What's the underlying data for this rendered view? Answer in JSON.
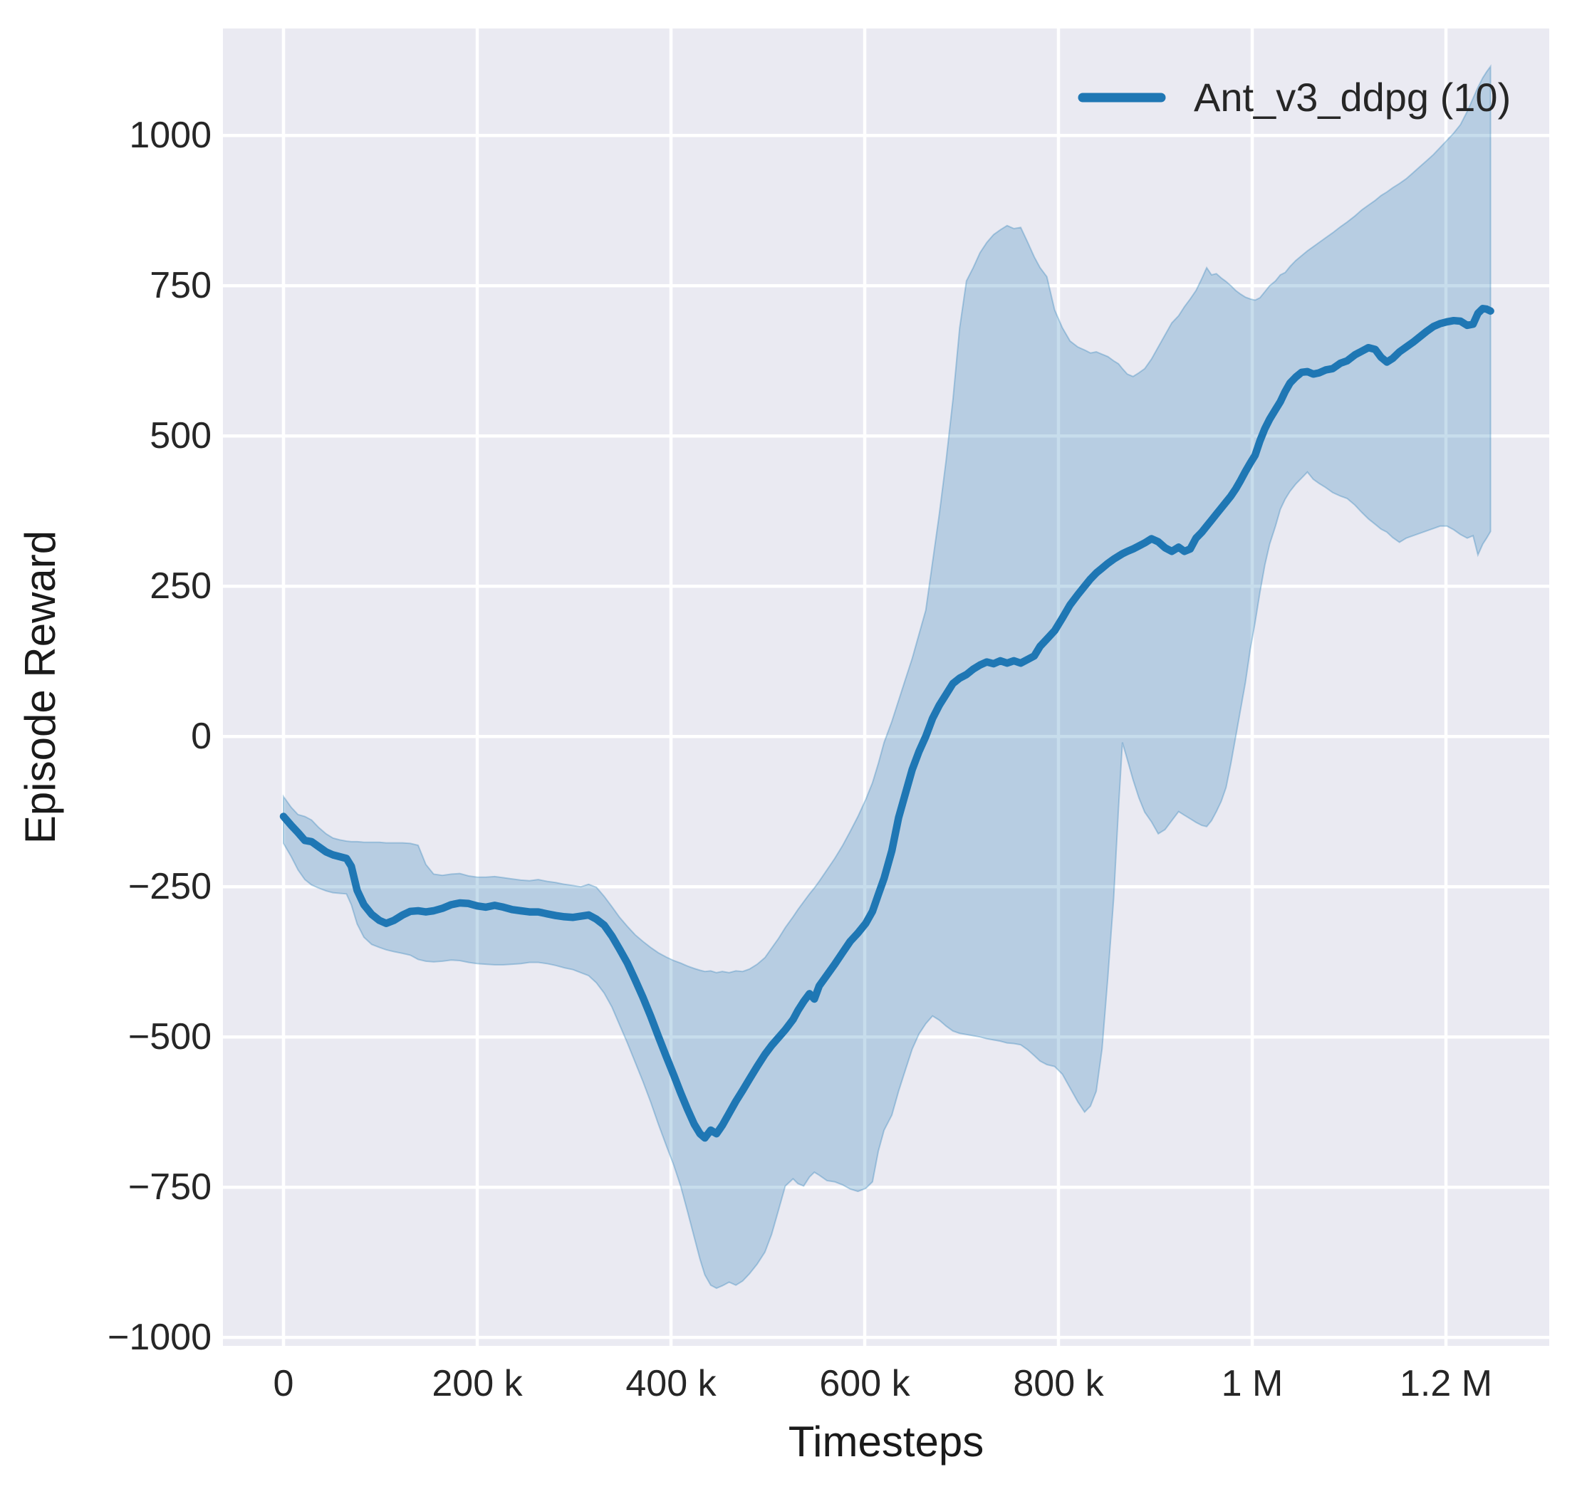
{
  "chart_data": {
    "type": "line",
    "title": "",
    "xlabel": "Timesteps",
    "ylabel": "Episode Reward",
    "grid": true,
    "line_color": "#1f77b4",
    "plot_background": "#eaeaf2",
    "gridline_color": "#ffffff",
    "xlim": [
      -62500,
      1306600
    ],
    "ylim": [
      -1014,
      1178
    ],
    "x_ticks": {
      "values": [
        0,
        200000,
        400000,
        600000,
        800000,
        1000000,
        1200000
      ],
      "labels": [
        "0",
        "200 k",
        "400 k",
        "600 k",
        "800 k",
        "1 M",
        "1.2 M"
      ]
    },
    "y_ticks": {
      "values": [
        1000,
        750,
        500,
        250,
        0,
        -250,
        -500,
        -750,
        -1000
      ],
      "labels": [
        "1000",
        "750",
        "500",
        "250",
        "0",
        "−250",
        "−500",
        "−750",
        "−1000"
      ]
    },
    "legend": {
      "position": "upper right",
      "entries": [
        {
          "label": "Ant_v3_ddpg (10)",
          "color": "#1f77b4"
        }
      ]
    },
    "x": [
      0,
      8000,
      15000,
      22000,
      29000,
      36000,
      44000,
      51000,
      58000,
      65000,
      70000,
      76000,
      83000,
      91000,
      99000,
      106000,
      114000,
      123000,
      131000,
      139000,
      147000,
      155000,
      164000,
      173000,
      182000,
      191000,
      200000,
      209000,
      218000,
      227000,
      236000,
      245000,
      254000,
      263000,
      272000,
      281000,
      290000,
      299000,
      307000,
      315000,
      323000,
      331000,
      339000,
      347000,
      355000,
      363000,
      371000,
      379000,
      387000,
      395000,
      403000,
      410000,
      417000,
      424000,
      430000,
      435000,
      441000,
      447000,
      453000,
      460000,
      467000,
      474000,
      481000,
      489000,
      497000,
      504000,
      511000,
      518000,
      526000,
      531000,
      537000,
      543000,
      548000,
      553000,
      561000,
      569000,
      577000,
      585000,
      593000,
      601000,
      608000,
      614000,
      620000,
      628000,
      635000,
      642000,
      649000,
      656000,
      663000,
      670000,
      677000,
      684000,
      691000,
      698000,
      705000,
      712000,
      719000,
      726000,
      733000,
      740000,
      747000,
      754000,
      761000,
      768000,
      775000,
      781000,
      788000,
      796000,
      804000,
      812000,
      820000,
      827000,
      833000,
      839000,
      845000,
      851000,
      857000,
      862000,
      866000,
      871000,
      877000,
      883000,
      889000,
      896000,
      903000,
      910000,
      917000,
      924000,
      930000,
      936000,
      942000,
      948000,
      953000,
      958000,
      963000,
      968000,
      973000,
      978000,
      983000,
      988000,
      993000,
      998000,
      1003000,
      1008000,
      1013000,
      1018000,
      1024000,
      1029000,
      1034000,
      1039000,
      1045000,
      1051000,
      1057000,
      1063000,
      1069000,
      1076000,
      1083000,
      1091000,
      1098000,
      1106000,
      1113000,
      1120000,
      1127000,
      1133000,
      1139000,
      1145000,
      1152000,
      1159000,
      1166000,
      1173000,
      1180000,
      1187000,
      1194000,
      1201000,
      1208000,
      1215000,
      1222000,
      1228000,
      1233000,
      1238000,
      1242000,
      1246000
    ],
    "series": [
      {
        "name": "Ant_v3_ddpg (10)",
        "values": [
          -133,
          -148,
          -160,
          -173,
          -175,
          -183,
          -192,
          -197,
          -200,
          -203,
          -216,
          -256,
          -280,
          -296,
          -306,
          -311,
          -306,
          -297,
          -291,
          -290,
          -292,
          -290,
          -286,
          -280,
          -277,
          -278,
          -282,
          -284,
          -281,
          -284,
          -288,
          -290,
          -292,
          -292,
          -295,
          -298,
          -300,
          -301,
          -299,
          -297,
          -304,
          -314,
          -332,
          -354,
          -377,
          -405,
          -434,
          -465,
          -499,
          -532,
          -564,
          -593,
          -620,
          -645,
          -661,
          -668,
          -655,
          -661,
          -647,
          -627,
          -607,
          -589,
          -570,
          -549,
          -529,
          -514,
          -501,
          -488,
          -471,
          -456,
          -441,
          -428,
          -437,
          -415,
          -397,
          -379,
          -360,
          -341,
          -327,
          -311,
          -291,
          -263,
          -236,
          -190,
          -135,
          -95,
          -55,
          -25,
          0,
          30,
          52,
          70,
          88,
          97,
          103,
          112,
          119,
          124,
          121,
          126,
          122,
          126,
          122,
          128,
          134,
          150,
          162,
          176,
          197,
          219,
          236,
          250,
          262,
          272,
          280,
          288,
          295,
          300,
          304,
          308,
          312,
          317,
          322,
          329,
          324,
          314,
          308,
          315,
          308,
          312,
          330,
          340,
          350,
          360,
          370,
          380,
          390,
          400,
          412,
          426,
          441,
          455,
          468,
          492,
          512,
          528,
          544,
          557,
          574,
          588,
          598,
          606,
          607,
          603,
          605,
          610,
          612,
          621,
          625,
          635,
          641,
          647,
          644,
          631,
          623,
          629,
          640,
          648,
          656,
          665,
          674,
          682,
          687,
          690,
          692,
          691,
          684,
          686,
          704,
          712,
          711,
          708
        ]
      }
    ],
    "band": {
      "lo": [
        -178,
        -200,
        -222,
        -238,
        -247,
        -252,
        -257,
        -260,
        -261,
        -262,
        -280,
        -312,
        -334,
        -346,
        -351,
        -355,
        -358,
        -361,
        -364,
        -371,
        -374,
        -375,
        -374,
        -372,
        -373,
        -376,
        -378,
        -379,
        -380,
        -380,
        -379,
        -378,
        -376,
        -376,
        -378,
        -381,
        -385,
        -388,
        -393,
        -398,
        -410,
        -427,
        -450,
        -480,
        -510,
        -542,
        -574,
        -608,
        -645,
        -680,
        -714,
        -748,
        -790,
        -833,
        -870,
        -896,
        -913,
        -918,
        -914,
        -908,
        -913,
        -906,
        -894,
        -878,
        -858,
        -828,
        -788,
        -748,
        -736,
        -744,
        -748,
        -733,
        -725,
        -730,
        -739,
        -741,
        -746,
        -753,
        -757,
        -752,
        -741,
        -690,
        -655,
        -630,
        -590,
        -555,
        -520,
        -495,
        -478,
        -465,
        -472,
        -482,
        -490,
        -494,
        -496,
        -498,
        -500,
        -503,
        -505,
        -507,
        -510,
        -511,
        -513,
        -521,
        -531,
        -540,
        -546,
        -549,
        -562,
        -585,
        -608,
        -625,
        -615,
        -590,
        -520,
        -400,
        -270,
        -120,
        -10,
        -38,
        -72,
        -102,
        -126,
        -142,
        -162,
        -155,
        -140,
        -125,
        -131,
        -137,
        -143,
        -148,
        -150,
        -140,
        -125,
        -108,
        -85,
        -45,
        0,
        45,
        90,
        145,
        190,
        240,
        285,
        320,
        350,
        378,
        395,
        408,
        420,
        430,
        440,
        428,
        421,
        414,
        406,
        400,
        396,
        385,
        373,
        362,
        353,
        345,
        340,
        331,
        323,
        330,
        334,
        338,
        342,
        346,
        350,
        350,
        344,
        336,
        330,
        334,
        302,
        320,
        330,
        341
      ],
      "hi": [
        -100,
        -118,
        -130,
        -133,
        -139,
        -151,
        -162,
        -169,
        -172,
        -174,
        -175,
        -175,
        -176,
        -176,
        -176,
        -177,
        -177,
        -177,
        -178,
        -181,
        -213,
        -229,
        -231,
        -229,
        -228,
        -232,
        -234,
        -234,
        -233,
        -235,
        -237,
        -239,
        -240,
        -238,
        -241,
        -243,
        -246,
        -248,
        -250,
        -246,
        -251,
        -266,
        -283,
        -301,
        -316,
        -330,
        -341,
        -351,
        -360,
        -367,
        -373,
        -377,
        -382,
        -386,
        -389,
        -391,
        -390,
        -393,
        -391,
        -393,
        -390,
        -391,
        -387,
        -379,
        -368,
        -352,
        -336,
        -318,
        -300,
        -288,
        -275,
        -262,
        -252,
        -241,
        -222,
        -203,
        -182,
        -158,
        -133,
        -105,
        -77,
        -45,
        -10,
        25,
        60,
        95,
        130,
        170,
        210,
        290,
        370,
        460,
        560,
        680,
        758,
        780,
        805,
        822,
        835,
        843,
        850,
        845,
        847,
        823,
        798,
        780,
        765,
        710,
        680,
        658,
        648,
        643,
        638,
        640,
        636,
        632,
        625,
        620,
        612,
        603,
        599,
        605,
        612,
        628,
        648,
        668,
        688,
        700,
        715,
        728,
        742,
        762,
        780,
        768,
        770,
        763,
        757,
        750,
        742,
        736,
        731,
        728,
        726,
        730,
        740,
        750,
        758,
        768,
        772,
        782,
        792,
        800,
        808,
        815,
        822,
        830,
        838,
        848,
        856,
        866,
        876,
        884,
        892,
        900,
        906,
        913,
        920,
        928,
        938,
        948,
        958,
        968,
        980,
        992,
        1004,
        1018,
        1040,
        1062,
        1080,
        1096,
        1106,
        1115
      ]
    }
  }
}
